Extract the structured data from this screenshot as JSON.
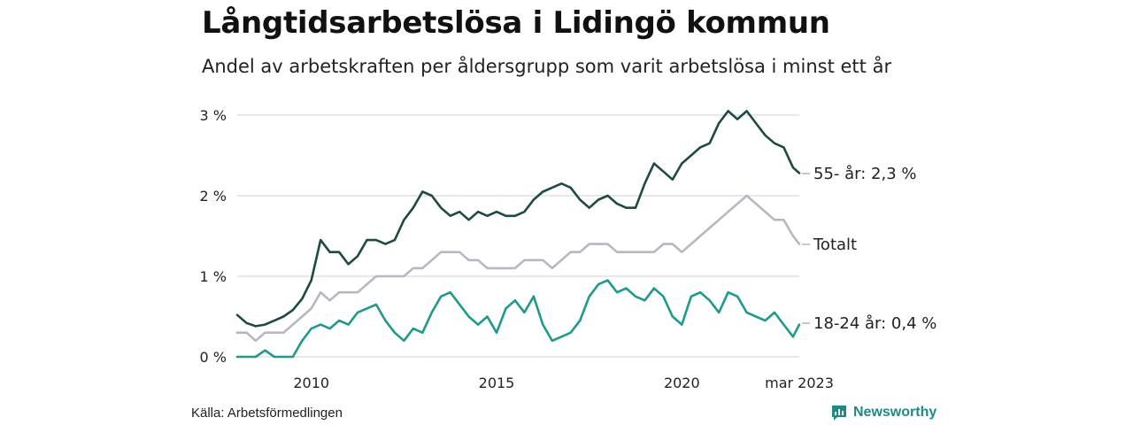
{
  "header": {
    "title": "Långtidsarbetslösa i Lidingö kommun",
    "subtitle": "Andel av arbetskraften per åldersgrupp som varit arbetslösa i minst ett år"
  },
  "footer": {
    "source": "Källa: Arbetsförmedlingen",
    "brand": "Newsworthy",
    "brand_color": "#1f8a84"
  },
  "chart_data": {
    "type": "line",
    "title": "",
    "xlabel": "",
    "ylabel": "",
    "ylim": [
      0,
      3
    ],
    "xlim": [
      2008.0,
      2023.17
    ],
    "grid": true,
    "yticks": [
      {
        "value": 0,
        "label": "0 %"
      },
      {
        "value": 1,
        "label": "1 %"
      },
      {
        "value": 2,
        "label": "2 %"
      },
      {
        "value": 3,
        "label": "3 %"
      }
    ],
    "xticks": [
      {
        "value": 2010,
        "label": "2010"
      },
      {
        "value": 2015,
        "label": "2015"
      },
      {
        "value": 2020,
        "label": "2020"
      },
      {
        "value": 2023.17,
        "label": "mar 2023"
      }
    ],
    "series": [
      {
        "name": "55- år",
        "end_label": "55- år: 2,3 %",
        "color": "#1e4a43",
        "x": [
          2008.0,
          2008.25,
          2008.5,
          2008.75,
          2009.0,
          2009.25,
          2009.5,
          2009.75,
          2010.0,
          2010.25,
          2010.5,
          2010.75,
          2011.0,
          2011.25,
          2011.5,
          2011.75,
          2012.0,
          2012.25,
          2012.5,
          2012.75,
          2013.0,
          2013.25,
          2013.5,
          2013.75,
          2014.0,
          2014.25,
          2014.5,
          2014.75,
          2015.0,
          2015.25,
          2015.5,
          2015.75,
          2016.0,
          2016.25,
          2016.5,
          2016.75,
          2017.0,
          2017.25,
          2017.5,
          2017.75,
          2018.0,
          2018.25,
          2018.5,
          2018.75,
          2019.0,
          2019.25,
          2019.5,
          2019.75,
          2020.0,
          2020.25,
          2020.5,
          2020.75,
          2021.0,
          2021.25,
          2021.5,
          2021.75,
          2022.0,
          2022.25,
          2022.5,
          2022.75,
          2023.0,
          2023.17
        ],
        "values": [
          0.52,
          0.42,
          0.38,
          0.4,
          0.45,
          0.5,
          0.58,
          0.72,
          0.95,
          1.45,
          1.3,
          1.3,
          1.15,
          1.25,
          1.45,
          1.45,
          1.4,
          1.45,
          1.7,
          1.85,
          2.05,
          2.0,
          1.85,
          1.75,
          1.8,
          1.7,
          1.8,
          1.75,
          1.8,
          1.75,
          1.75,
          1.8,
          1.95,
          2.05,
          2.1,
          2.15,
          2.1,
          1.95,
          1.85,
          1.95,
          2.0,
          1.9,
          1.85,
          1.85,
          2.15,
          2.4,
          2.3,
          2.2,
          2.4,
          2.5,
          2.6,
          2.65,
          2.9,
          3.05,
          2.95,
          3.05,
          2.9,
          2.75,
          2.65,
          2.6,
          2.35,
          2.28
        ]
      },
      {
        "name": "Totalt",
        "end_label": "Totalt",
        "color": "#b9b6c3",
        "x": [
          2008.0,
          2008.25,
          2008.5,
          2008.75,
          2009.0,
          2009.25,
          2009.5,
          2009.75,
          2010.0,
          2010.25,
          2010.5,
          2010.75,
          2011.0,
          2011.25,
          2011.5,
          2011.75,
          2012.0,
          2012.25,
          2012.5,
          2012.75,
          2013.0,
          2013.25,
          2013.5,
          2013.75,
          2014.0,
          2014.25,
          2014.5,
          2014.75,
          2015.0,
          2015.25,
          2015.5,
          2015.75,
          2016.0,
          2016.25,
          2016.5,
          2016.75,
          2017.0,
          2017.25,
          2017.5,
          2017.75,
          2018.0,
          2018.25,
          2018.5,
          2018.75,
          2019.0,
          2019.25,
          2019.5,
          2019.75,
          2020.0,
          2020.25,
          2020.5,
          2020.75,
          2021.0,
          2021.25,
          2021.5,
          2021.75,
          2022.0,
          2022.25,
          2022.5,
          2022.75,
          2023.0,
          2023.17
        ],
        "values": [
          0.3,
          0.3,
          0.2,
          0.3,
          0.3,
          0.3,
          0.4,
          0.5,
          0.6,
          0.8,
          0.7,
          0.8,
          0.8,
          0.8,
          0.9,
          1.0,
          1.0,
          1.0,
          1.0,
          1.1,
          1.1,
          1.2,
          1.3,
          1.3,
          1.3,
          1.2,
          1.2,
          1.1,
          1.1,
          1.1,
          1.1,
          1.2,
          1.2,
          1.2,
          1.1,
          1.2,
          1.3,
          1.3,
          1.4,
          1.4,
          1.4,
          1.3,
          1.3,
          1.3,
          1.3,
          1.3,
          1.4,
          1.4,
          1.3,
          1.4,
          1.5,
          1.6,
          1.7,
          1.8,
          1.9,
          2.0,
          1.9,
          1.8,
          1.7,
          1.7,
          1.5,
          1.4
        ]
      },
      {
        "name": "18-24 år",
        "end_label": "18-24 år: 0,4 %",
        "color": "#1f9a8a",
        "x": [
          2008.0,
          2008.25,
          2008.5,
          2008.75,
          2009.0,
          2009.25,
          2009.5,
          2009.75,
          2010.0,
          2010.25,
          2010.5,
          2010.75,
          2011.0,
          2011.25,
          2011.5,
          2011.75,
          2012.0,
          2012.25,
          2012.5,
          2012.75,
          2013.0,
          2013.25,
          2013.5,
          2013.75,
          2014.0,
          2014.25,
          2014.5,
          2014.75,
          2015.0,
          2015.25,
          2015.5,
          2015.75,
          2016.0,
          2016.25,
          2016.5,
          2016.75,
          2017.0,
          2017.25,
          2017.5,
          2017.75,
          2018.0,
          2018.25,
          2018.5,
          2018.75,
          2019.0,
          2019.25,
          2019.5,
          2019.75,
          2020.0,
          2020.25,
          2020.5,
          2020.75,
          2021.0,
          2021.25,
          2021.5,
          2021.75,
          2022.0,
          2022.25,
          2022.5,
          2022.75,
          2023.0,
          2023.17
        ],
        "values": [
          0.0,
          0.0,
          0.0,
          0.08,
          0.0,
          0.0,
          0.0,
          0.2,
          0.35,
          0.4,
          0.35,
          0.45,
          0.4,
          0.55,
          0.6,
          0.65,
          0.45,
          0.3,
          0.2,
          0.35,
          0.3,
          0.55,
          0.75,
          0.8,
          0.65,
          0.5,
          0.4,
          0.5,
          0.3,
          0.6,
          0.7,
          0.55,
          0.75,
          0.4,
          0.2,
          0.25,
          0.3,
          0.45,
          0.75,
          0.9,
          0.95,
          0.8,
          0.85,
          0.75,
          0.7,
          0.85,
          0.75,
          0.5,
          0.4,
          0.75,
          0.8,
          0.7,
          0.55,
          0.8,
          0.75,
          0.55,
          0.5,
          0.45,
          0.55,
          0.4,
          0.25,
          0.4
        ]
      }
    ]
  }
}
